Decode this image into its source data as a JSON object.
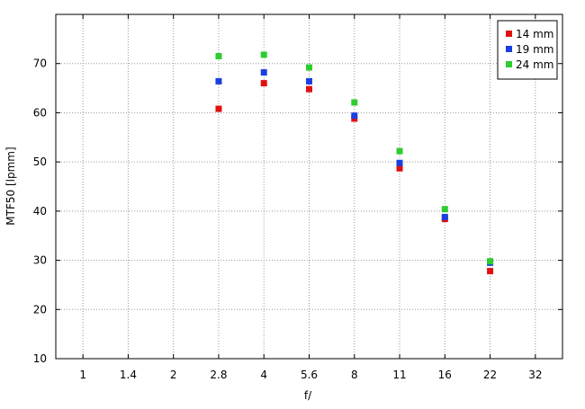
{
  "chart_data": {
    "type": "scatter",
    "xlabel": "f/",
    "ylabel": "MTF50 [lpmm]",
    "x_ticks": [
      "1",
      "1.4",
      "2",
      "2.8",
      "4",
      "5.6",
      "8",
      "11",
      "16",
      "22",
      "32"
    ],
    "y_ticks": [
      10,
      20,
      30,
      40,
      50,
      60,
      70
    ],
    "ylim": [
      10,
      80
    ],
    "grid": true,
    "legend_position": "top-right",
    "series": [
      {
        "name": "14 mm",
        "color": "#e01010",
        "points": [
          {
            "x": "2.8",
            "y": 60.8
          },
          {
            "x": "4",
            "y": 66.0
          },
          {
            "x": "5.6",
            "y": 64.8
          },
          {
            "x": "8",
            "y": 58.8
          },
          {
            "x": "11",
            "y": 48.7
          },
          {
            "x": "16",
            "y": 38.4
          },
          {
            "x": "22",
            "y": 27.8
          }
        ]
      },
      {
        "name": "19 mm",
        "color": "#1a3fe0",
        "points": [
          {
            "x": "2.8",
            "y": 66.4
          },
          {
            "x": "4",
            "y": 68.2
          },
          {
            "x": "5.6",
            "y": 66.4
          },
          {
            "x": "8",
            "y": 59.4
          },
          {
            "x": "11",
            "y": 49.8
          },
          {
            "x": "16",
            "y": 38.8
          },
          {
            "x": "22",
            "y": 29.5
          }
        ]
      },
      {
        "name": "24 mm",
        "color": "#2ecc2e",
        "points": [
          {
            "x": "2.8",
            "y": 71.5
          },
          {
            "x": "4",
            "y": 71.8
          },
          {
            "x": "5.6",
            "y": 69.2
          },
          {
            "x": "8",
            "y": 62.1
          },
          {
            "x": "11",
            "y": 52.2
          },
          {
            "x": "16",
            "y": 40.4
          },
          {
            "x": "22",
            "y": 29.8
          }
        ]
      }
    ]
  }
}
